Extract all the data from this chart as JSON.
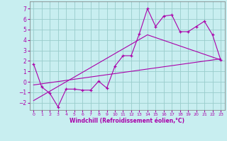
{
  "xlabel": "Windchill (Refroidissement éolien,°C)",
  "xlim": [
    -0.5,
    23.5
  ],
  "ylim": [
    -2.7,
    7.7
  ],
  "xticks": [
    0,
    1,
    2,
    3,
    4,
    5,
    6,
    7,
    8,
    9,
    10,
    11,
    12,
    13,
    14,
    15,
    16,
    17,
    18,
    19,
    20,
    21,
    22,
    23
  ],
  "yticks": [
    -2,
    -1,
    0,
    1,
    2,
    3,
    4,
    5,
    6,
    7
  ],
  "bg_color": "#c8eef0",
  "line_color": "#aa00aa",
  "grid_color": "#99cccc",
  "main_x": [
    0,
    1,
    2,
    3,
    4,
    5,
    6,
    7,
    8,
    9,
    10,
    11,
    12,
    13,
    14,
    15,
    16,
    17,
    18,
    19,
    20,
    21,
    22,
    23
  ],
  "main_y": [
    1.7,
    -0.5,
    -1.1,
    -2.4,
    -0.7,
    -0.7,
    -0.8,
    -0.8,
    0.05,
    -0.6,
    1.5,
    2.5,
    2.5,
    4.6,
    7.0,
    5.3,
    6.3,
    6.4,
    4.8,
    4.8,
    5.3,
    5.8,
    4.5,
    2.1
  ],
  "line2_x": [
    0,
    23
  ],
  "line2_y": [
    -0.3,
    2.2
  ],
  "line3_x": [
    0,
    14,
    23
  ],
  "line3_y": [
    -1.8,
    4.5,
    2.1
  ]
}
